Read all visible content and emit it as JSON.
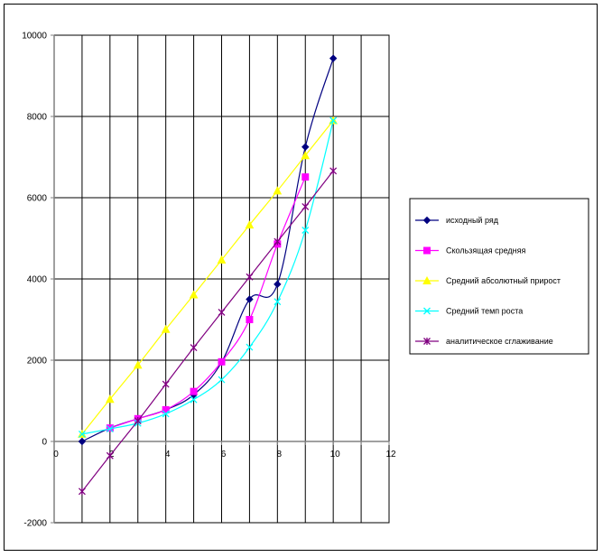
{
  "chart_data": {
    "type": "line",
    "title": "",
    "xlabel": "",
    "ylabel": "",
    "xlim": [
      0,
      12
    ],
    "ylim": [
      -2000,
      10000
    ],
    "x_ticks": [
      0,
      2,
      4,
      6,
      8,
      10,
      12
    ],
    "y_ticks": [
      -2000,
      0,
      2000,
      4000,
      6000,
      8000,
      10000
    ],
    "grid": "vertical and horizontal",
    "legend_position": "right",
    "series": [
      {
        "name": "исходный ряд",
        "color": "#000080",
        "marker": "diamond",
        "x": [
          1,
          2,
          3,
          4,
          5,
          6,
          7,
          8,
          9,
          10
        ],
        "values": [
          0,
          330,
          560,
          780,
          1150,
          1950,
          3500,
          3870,
          7250,
          9430
        ]
      },
      {
        "name": "Скользящая  средняя",
        "color": "#ff00ff",
        "marker": "square",
        "x": [
          2,
          3,
          4,
          5,
          6,
          7,
          8,
          9
        ],
        "values": [
          330,
          560,
          780,
          1230,
          1960,
          3000,
          4860,
          6510
        ]
      },
      {
        "name": "Средний абсолютный прирост",
        "color": "#ffff00",
        "marker": "triangle",
        "x": [
          1,
          2,
          3,
          4,
          5,
          6,
          7,
          8,
          9,
          10
        ],
        "values": [
          180,
          1040,
          1880,
          2760,
          3610,
          4470,
          5330,
          6170,
          7040,
          7900
        ]
      },
      {
        "name": "Средний темп роста",
        "color": "#00ffff",
        "marker": "x",
        "x": [
          1,
          2,
          3,
          4,
          5,
          6,
          7,
          8,
          9,
          10
        ],
        "values": [
          180,
          310,
          450,
          680,
          1030,
          1520,
          2320,
          3440,
          5200,
          7900
        ]
      },
      {
        "name": "аналитическое сглаживание",
        "color": "#800080",
        "marker": "star",
        "x": [
          1,
          2,
          3,
          4,
          5,
          6,
          7,
          8,
          9,
          10
        ],
        "values": [
          -1230,
          -350,
          510,
          1410,
          2310,
          3180,
          4050,
          4920,
          5780,
          6660
        ]
      }
    ]
  }
}
